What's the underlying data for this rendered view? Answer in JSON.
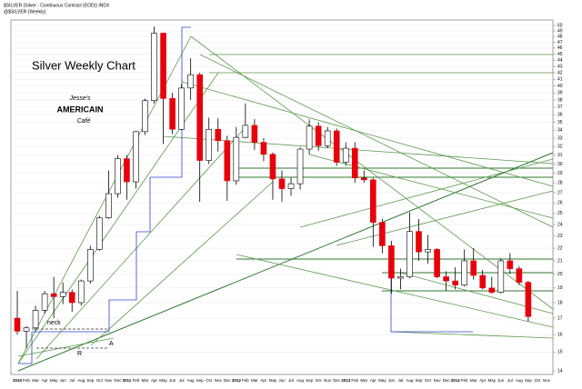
{
  "chart_data": {
    "type": "candlestick",
    "title": "Silver Weekly Chart",
    "subtitle": "$SILVER (Silver - Continuous Contract (EOD)) INDX",
    "subtitle2": "@$SILVER (Weekly)",
    "annotations": [
      "neck",
      "A",
      "R"
    ],
    "logo": [
      "Jesse's",
      "AMERICAIN",
      "Café"
    ],
    "categories": [
      "2010",
      "Feb",
      "Mar",
      "Apr",
      "May",
      "Jun",
      "Jul",
      "Aug",
      "Sep",
      "Oct",
      "Nov",
      "Dec",
      "2011",
      "Feb",
      "Mar",
      "Apr",
      "May",
      "Jun",
      "Jul",
      "Aug",
      "Sep",
      "Oct",
      "Nov",
      "Dec",
      "2012",
      "Feb",
      "Mar",
      "Apr",
      "May",
      "Jun",
      "Jul",
      "Aug",
      "Sep",
      "Oct",
      "Nov",
      "Dec",
      "2013",
      "Feb",
      "Mar",
      "Apr",
      "May",
      "Jun",
      "Jul",
      "Aug",
      "Sep",
      "Oct",
      "Nov",
      "Dec",
      "2014",
      "Feb",
      "Mar",
      "Apr",
      "May",
      "Jun",
      "Jul",
      "Aug",
      "Sep",
      "Oct",
      "Nov"
    ],
    "open": [
      17.0,
      16.2,
      16.4,
      17.5,
      18.6,
      18.4,
      18.7,
      18.0,
      19.5,
      21.9,
      24.6,
      26.9,
      30.6,
      28.1,
      33.8,
      37.9,
      48.6,
      38.2,
      34.1,
      39.7,
      41.7,
      30.4,
      34.1,
      32.7,
      28.2,
      33.1,
      34.6,
      32.5,
      31.1,
      28.4,
      27.4,
      27.9,
      31.7,
      34.5,
      32.1,
      33.9,
      30.2,
      31.8,
      28.5,
      28.3,
      24.2,
      22.2,
      19.7,
      19.8,
      23.4,
      21.7,
      21.9,
      19.8,
      19.5,
      19.2,
      21.0,
      19.9,
      19.0,
      18.7,
      21.0,
      20.4,
      19.4,
      null,
      null
    ],
    "high": [
      18.8,
      16.5,
      17.8,
      18.8,
      19.8,
      19.4,
      18.9,
      19.6,
      22.2,
      24.8,
      29.3,
      31.0,
      31.0,
      33.9,
      38.2,
      49.8,
      48.7,
      39.0,
      40.3,
      44.3,
      42.0,
      35.6,
      35.5,
      33.3,
      34.4,
      37.5,
      35.4,
      33.0,
      31.3,
      29.3,
      28.5,
      31.9,
      35.4,
      35.0,
      34.4,
      34.2,
      32.5,
      32.5,
      29.3,
      28.5,
      24.5,
      22.6,
      20.4,
      25.1,
      24.5,
      23.1,
      22.0,
      20.2,
      20.5,
      21.9,
      22.0,
      20.3,
      19.8,
      21.2,
      21.6,
      20.6,
      19.5,
      null,
      null
    ],
    "low": [
      16.0,
      15.2,
      16.2,
      17.3,
      17.0,
      17.9,
      17.4,
      17.8,
      19.3,
      21.8,
      24.5,
      26.5,
      26.3,
      27.4,
      33.4,
      37.5,
      32.3,
      33.5,
      34.0,
      38.0,
      26.1,
      30.0,
      31.4,
      26.2,
      27.8,
      33.0,
      31.6,
      30.3,
      26.3,
      26.1,
      26.7,
      27.3,
      31.1,
      31.5,
      31.8,
      29.8,
      29.8,
      28.0,
      28.0,
      22.1,
      21.6,
      18.6,
      18.9,
      19.7,
      21.0,
      20.8,
      19.7,
      18.8,
      18.9,
      19.1,
      19.6,
      18.9,
      18.6,
      18.6,
      20.0,
      19.2,
      16.8,
      null,
      null
    ],
    "close": [
      16.2,
      16.4,
      17.5,
      18.6,
      18.4,
      18.7,
      18.0,
      19.5,
      21.9,
      24.6,
      26.9,
      30.6,
      28.1,
      33.8,
      37.9,
      48.6,
      38.2,
      34.1,
      39.7,
      41.7,
      30.4,
      34.1,
      32.7,
      28.2,
      33.1,
      34.6,
      32.5,
      31.1,
      28.4,
      27.4,
      27.9,
      31.7,
      34.5,
      32.1,
      33.9,
      30.2,
      31.8,
      28.5,
      28.3,
      24.2,
      22.2,
      19.7,
      19.8,
      23.4,
      21.7,
      21.9,
      19.8,
      19.5,
      19.2,
      21.0,
      19.9,
      19.0,
      18.7,
      21.0,
      20.4,
      19.4,
      17.1,
      null,
      null
    ],
    "up_color": "#ffffff",
    "down_color": "#e8000b",
    "wick_color": "#000000",
    "log_scale": true,
    "grid": true,
    "ylim": [
      14,
      50
    ],
    "yticks": [
      14,
      15,
      16,
      17,
      18,
      19,
      20,
      21,
      22,
      23,
      24,
      25,
      26,
      27,
      28,
      29,
      30,
      31,
      32,
      33,
      34,
      35,
      36,
      37,
      38,
      39,
      40,
      41,
      42,
      43,
      44,
      45,
      46,
      47,
      48,
      49,
      50
    ]
  }
}
